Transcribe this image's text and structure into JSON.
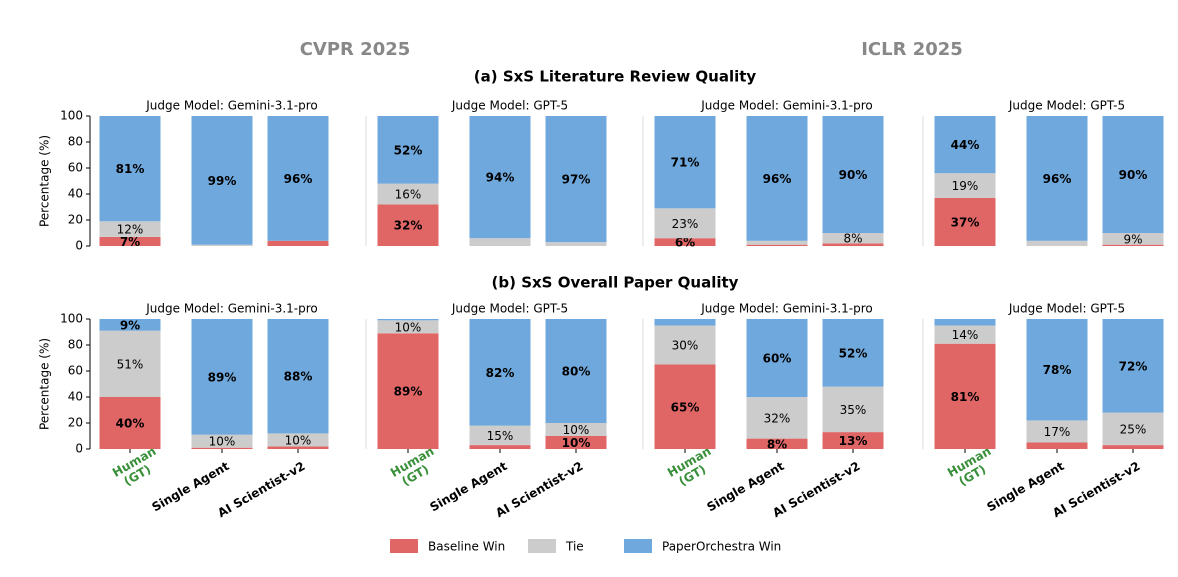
{
  "conferences": [
    "CVPR 2025",
    "ICLR 2025"
  ],
  "sections": [
    "(a) SxS Literature Review Quality",
    "(b) SxS Overall Paper Quality"
  ],
  "chart_data": [
    {
      "type": "stacked_bar",
      "title": "Judge Model: Gemini-3.1-pro",
      "ylabel": "Percentage (%)",
      "categories": [
        null,
        null,
        null
      ],
      "ylim": [
        0,
        100
      ],
      "yticks": [
        0,
        20,
        40,
        60,
        80,
        100
      ],
      "series": [
        {
          "name": "Baseline Win",
          "color": "#e06666",
          "label_color": "#ffffff",
          "values": [
            7,
            0,
            4
          ],
          "value_labels": [
            "7%",
            null,
            null
          ]
        },
        {
          "name": "Tie",
          "color": "#cccccc",
          "label_color": "#000000",
          "values": [
            12,
            1,
            0
          ],
          "value_labels": [
            "12%",
            null,
            null
          ]
        },
        {
          "name": "PaperOrchestra Win",
          "color": "#6fa8dc",
          "label_color": "#ffffff",
          "values": [
            81,
            99,
            96
          ],
          "value_labels": [
            "81%",
            "99%",
            "96%"
          ]
        }
      ]
    },
    {
      "type": "stacked_bar",
      "title": "Judge Model: GPT-5",
      "categories": [
        null,
        null,
        null
      ],
      "ylim": [
        0,
        100
      ],
      "series": [
        {
          "name": "Baseline Win",
          "color": "#e06666",
          "label_color": "#ffffff",
          "values": [
            32,
            0,
            0
          ],
          "value_labels": [
            "32%",
            null,
            null
          ]
        },
        {
          "name": "Tie",
          "color": "#cccccc",
          "label_color": "#000000",
          "values": [
            16,
            6,
            3
          ],
          "value_labels": [
            "16%",
            null,
            null
          ]
        },
        {
          "name": "PaperOrchestra Win",
          "color": "#6fa8dc",
          "label_color": "#ffffff",
          "values": [
            52,
            94,
            97
          ],
          "value_labels": [
            "52%",
            "94%",
            "97%"
          ]
        }
      ]
    },
    {
      "type": "stacked_bar",
      "title": "Judge Model: Gemini-3.1-pro",
      "categories": [
        null,
        null,
        null
      ],
      "ylim": [
        0,
        100
      ],
      "series": [
        {
          "name": "Baseline Win",
          "color": "#e06666",
          "label_color": "#ffffff",
          "values": [
            6,
            1,
            2
          ],
          "value_labels": [
            "6%",
            null,
            null
          ]
        },
        {
          "name": "Tie",
          "color": "#cccccc",
          "label_color": "#000000",
          "values": [
            23,
            3,
            8
          ],
          "value_labels": [
            "23%",
            null,
            "8%"
          ]
        },
        {
          "name": "PaperOrchestra Win",
          "color": "#6fa8dc",
          "label_color": "#ffffff",
          "values": [
            71,
            96,
            90
          ],
          "value_labels": [
            "71%",
            "96%",
            "90%"
          ]
        }
      ]
    },
    {
      "type": "stacked_bar",
      "title": "Judge Model: GPT-5",
      "categories": [
        null,
        null,
        null
      ],
      "ylim": [
        0,
        100
      ],
      "series": [
        {
          "name": "Baseline Win",
          "color": "#e06666",
          "label_color": "#ffffff",
          "values": [
            37,
            0,
            1
          ],
          "value_labels": [
            "37%",
            null,
            null
          ]
        },
        {
          "name": "Tie",
          "color": "#cccccc",
          "label_color": "#000000",
          "values": [
            19,
            4,
            9
          ],
          "value_labels": [
            "19%",
            null,
            "9%"
          ]
        },
        {
          "name": "PaperOrchestra Win",
          "color": "#6fa8dc",
          "label_color": "#ffffff",
          "values": [
            44,
            96,
            90
          ],
          "value_labels": [
            "44%",
            "96%",
            "90%"
          ]
        }
      ]
    },
    {
      "type": "stacked_bar",
      "title": "Judge Model: Gemini-3.1-pro",
      "ylabel": "Percentage (%)",
      "categories": [
        "Human\n(GT)",
        "Single Agent",
        "AI Scientist-v2"
      ],
      "category_colors": [
        "#3a8f3a",
        "#000000",
        "#000000"
      ],
      "ylim": [
        0,
        100
      ],
      "yticks": [
        0,
        20,
        40,
        60,
        80,
        100
      ],
      "series": [
        {
          "name": "Baseline Win",
          "color": "#e06666",
          "label_color": "#ffffff",
          "values": [
            40,
            1,
            2
          ],
          "value_labels": [
            "40%",
            null,
            null
          ]
        },
        {
          "name": "Tie",
          "color": "#cccccc",
          "label_color": "#000000",
          "values": [
            51,
            10,
            10
          ],
          "value_labels": [
            "51%",
            "10%",
            "10%"
          ]
        },
        {
          "name": "PaperOrchestra Win",
          "color": "#6fa8dc",
          "label_color": "#ffffff",
          "values": [
            9,
            89,
            88
          ],
          "value_labels": [
            "9%",
            "89%",
            "88%"
          ]
        }
      ]
    },
    {
      "type": "stacked_bar",
      "title": "Judge Model: GPT-5",
      "categories": [
        "Human\n(GT)",
        "Single Agent",
        "AI Scientist-v2"
      ],
      "category_colors": [
        "#3a8f3a",
        "#000000",
        "#000000"
      ],
      "ylim": [
        0,
        100
      ],
      "series": [
        {
          "name": "Baseline Win",
          "color": "#e06666",
          "label_color": "#ffffff",
          "values": [
            89,
            3,
            10
          ],
          "value_labels": [
            "89%",
            null,
            "10%"
          ]
        },
        {
          "name": "Tie",
          "color": "#cccccc",
          "label_color": "#000000",
          "values": [
            10,
            15,
            10
          ],
          "value_labels": [
            "10%",
            "15%",
            "10%"
          ]
        },
        {
          "name": "PaperOrchestra Win",
          "color": "#6fa8dc",
          "label_color": "#ffffff",
          "values": [
            1,
            82,
            80
          ],
          "value_labels": [
            null,
            "82%",
            "80%"
          ]
        }
      ]
    },
    {
      "type": "stacked_bar",
      "title": "Judge Model: Gemini-3.1-pro",
      "categories": [
        "Human\n(GT)",
        "Single Agent",
        "AI Scientist-v2"
      ],
      "category_colors": [
        "#3a8f3a",
        "#000000",
        "#000000"
      ],
      "ylim": [
        0,
        100
      ],
      "series": [
        {
          "name": "Baseline Win",
          "color": "#e06666",
          "label_color": "#ffffff",
          "values": [
            65,
            8,
            13
          ],
          "value_labels": [
            "65%",
            "8%",
            "13%"
          ]
        },
        {
          "name": "Tie",
          "color": "#cccccc",
          "label_color": "#000000",
          "values": [
            30,
            32,
            35
          ],
          "value_labels": [
            "30%",
            "32%",
            "35%"
          ]
        },
        {
          "name": "PaperOrchestra Win",
          "color": "#6fa8dc",
          "label_color": "#ffffff",
          "values": [
            5,
            60,
            52
          ],
          "value_labels": [
            null,
            "60%",
            "52%"
          ]
        }
      ]
    },
    {
      "type": "stacked_bar",
      "title": "Judge Model: GPT-5",
      "categories": [
        "Human\n(GT)",
        "Single Agent",
        "AI Scientist-v2"
      ],
      "category_colors": [
        "#3a8f3a",
        "#000000",
        "#000000"
      ],
      "ylim": [
        0,
        100
      ],
      "series": [
        {
          "name": "Baseline Win",
          "color": "#e06666",
          "label_color": "#ffffff",
          "values": [
            81,
            5,
            3
          ],
          "value_labels": [
            "81%",
            null,
            null
          ]
        },
        {
          "name": "Tie",
          "color": "#cccccc",
          "label_color": "#000000",
          "values": [
            14,
            17,
            25
          ],
          "value_labels": [
            "14%",
            "17%",
            "25%"
          ]
        },
        {
          "name": "PaperOrchestra Win",
          "color": "#6fa8dc",
          "label_color": "#ffffff",
          "values": [
            5,
            78,
            72
          ],
          "value_labels": [
            null,
            "78%",
            "72%"
          ]
        }
      ]
    }
  ]
}
